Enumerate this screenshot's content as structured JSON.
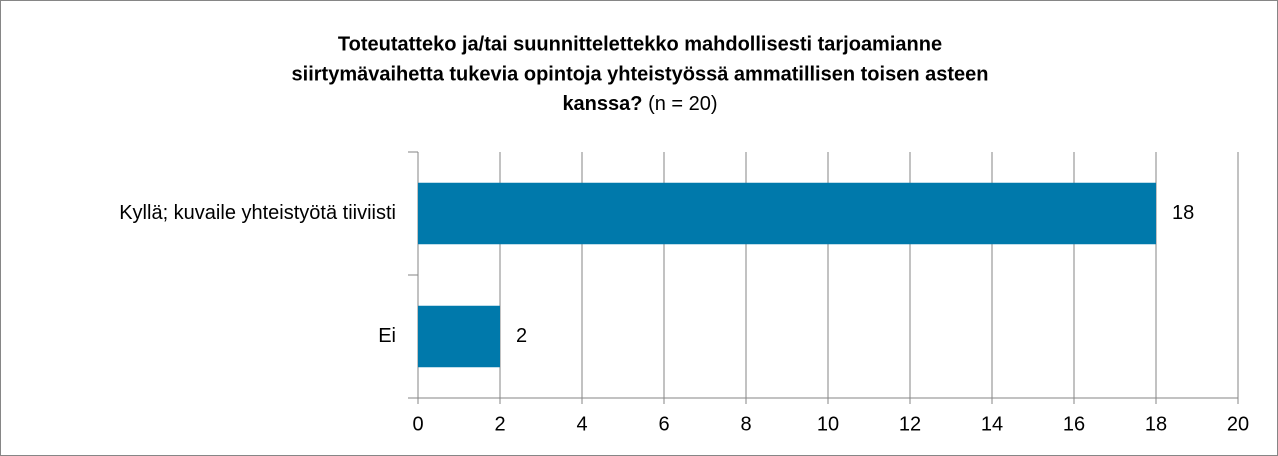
{
  "chart_data": {
    "type": "barh",
    "title_lines": [
      "Toteutatteko ja/tai suunnittelettekko mahdollisesti tarjoamianne",
      "siirtymävaihetta tukevia opintoja yhteistyössä ammatillisen toisen asteen",
      "kanssa?"
    ],
    "subtitle": "(n = 20)",
    "categories": [
      "Kyllä; kuvaile yhteistyötä tiiviisti",
      "Ei"
    ],
    "values": [
      18,
      2
    ],
    "color": "#0079ab",
    "xlim": [
      0,
      20
    ],
    "xticks": [
      0,
      2,
      4,
      6,
      8,
      10,
      12,
      14,
      16,
      18,
      20
    ],
    "grid": true
  }
}
